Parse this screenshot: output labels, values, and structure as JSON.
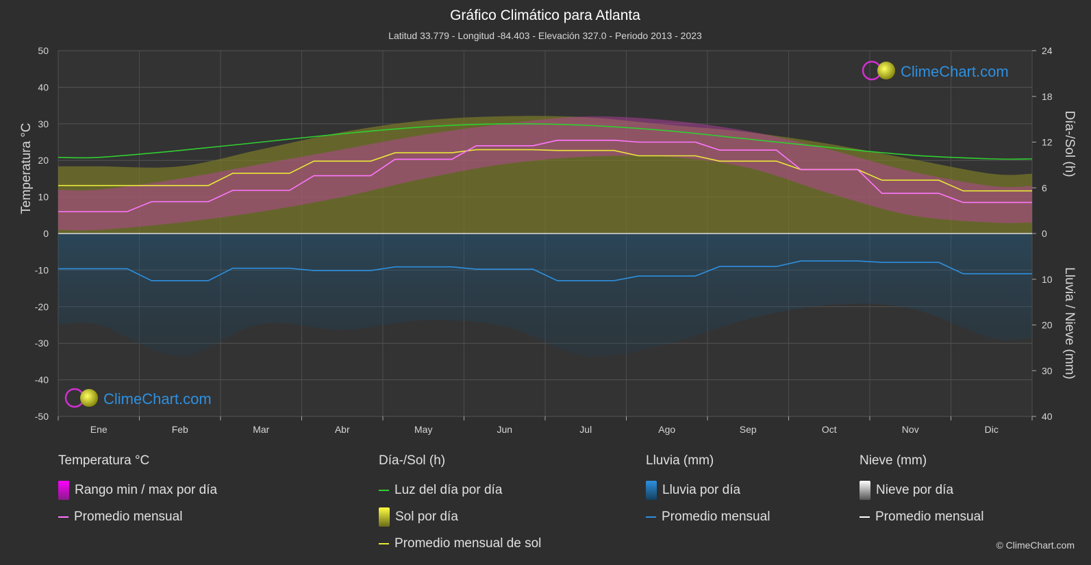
{
  "header": {
    "title": "Gráfico Climático para Atlanta",
    "subtitle": "Latitud 33.779 - Longitud -84.403 - Elevación 327.0 - Periodo 2013 - 2023"
  },
  "axes": {
    "left_label": "Temperatura °C",
    "right_top_label": "Día-/Sol (h)",
    "right_bottom_label": "Lluvia / Nieve (mm)"
  },
  "brand": {
    "name": "ClimeChart.com"
  },
  "copyright": "© ClimeChart.com",
  "legend": {
    "temp": {
      "title": "Temperatura °C",
      "range": "Rango min / max por día",
      "avg": "Promedio mensual"
    },
    "sun": {
      "title": "Día-/Sol (h)",
      "daylight": "Luz del día por día",
      "sun": "Sol por día",
      "avg": "Promedio mensual de sol"
    },
    "rain": {
      "title": "Lluvia (mm)",
      "daily": "Lluvia por día",
      "avg": "Promedio mensual"
    },
    "snow": {
      "title": "Nieve (mm)",
      "daily": "Nieve por día",
      "avg": "Promedio mensual"
    }
  },
  "colors": {
    "background": "#2e2e2e",
    "temp_range": "#d020d0",
    "temp_avg": "#ff77ff",
    "daylight": "#30d030",
    "sun_fill": "#8a8a2a",
    "sun_avg": "#e8e83a",
    "rain_fill": "#1f5f8a",
    "rain_avg": "#2e90e0",
    "snow_avg": "#ffffff",
    "brand_blue": "#2e90e0"
  },
  "chart_data": {
    "type": "area",
    "categories": [
      "Ene",
      "Feb",
      "Mar",
      "Abr",
      "May",
      "Jun",
      "Jul",
      "Ago",
      "Sep",
      "Oct",
      "Nov",
      "Dic"
    ],
    "y_left": {
      "label": "Temperatura °C",
      "min": -50,
      "max": 50,
      "ticks": [
        50,
        40,
        30,
        20,
        10,
        0,
        -10,
        -20,
        -30,
        -40,
        -50
      ]
    },
    "y_right_top": {
      "label": "Día-/Sol (h)",
      "min": 0,
      "max": 24,
      "ticks": [
        24,
        18,
        12,
        6,
        0
      ]
    },
    "y_right_bottom": {
      "label": "Lluvia / Nieve (mm)",
      "min": 0,
      "max": 40,
      "ticks": [
        0,
        10,
        20,
        30,
        40
      ]
    },
    "grid": true,
    "series": [
      {
        "name": "Promedio mensual",
        "group": "temperatura",
        "unit": "°C",
        "values": [
          6.0,
          8.7,
          11.8,
          15.8,
          20.3,
          24.0,
          25.5,
          25.0,
          22.8,
          17.5,
          11.0,
          8.5
        ]
      },
      {
        "name": "Rango min / max por día (max)",
        "group": "temperatura",
        "unit": "°C",
        "values": [
          12,
          15,
          19,
          23,
          27,
          30,
          32,
          31,
          28,
          23,
          17,
          13
        ]
      },
      {
        "name": "Rango min / max por día (min)",
        "group": "temperatura",
        "unit": "°C",
        "values": [
          1,
          3,
          6,
          10,
          15,
          19,
          21,
          21,
          18,
          11,
          5,
          3
        ]
      },
      {
        "name": "Luz del día por día",
        "group": "dia_sol",
        "unit": "h",
        "values": [
          10.0,
          10.9,
          12.0,
          13.1,
          14.0,
          14.4,
          14.2,
          13.5,
          12.4,
          11.3,
          10.3,
          9.8
        ]
      },
      {
        "name": "Promedio mensual de sol",
        "group": "dia_sol",
        "unit": "h",
        "values": [
          6.3,
          6.3,
          7.9,
          9.5,
          10.6,
          11.0,
          10.9,
          10.2,
          9.5,
          8.4,
          7.0,
          5.6
        ]
      },
      {
        "name": "Promedio mensual",
        "group": "lluvia",
        "unit": "mm",
        "values": [
          7.7,
          10.3,
          7.6,
          8.1,
          7.3,
          7.8,
          10.3,
          9.3,
          7.2,
          6.0,
          6.3,
          8.8
        ]
      },
      {
        "name": "Promedio mensual",
        "group": "nieve",
        "unit": "mm",
        "values": [
          0,
          0,
          0,
          0,
          0,
          0,
          0,
          0,
          0,
          0,
          0,
          0
        ]
      }
    ]
  }
}
